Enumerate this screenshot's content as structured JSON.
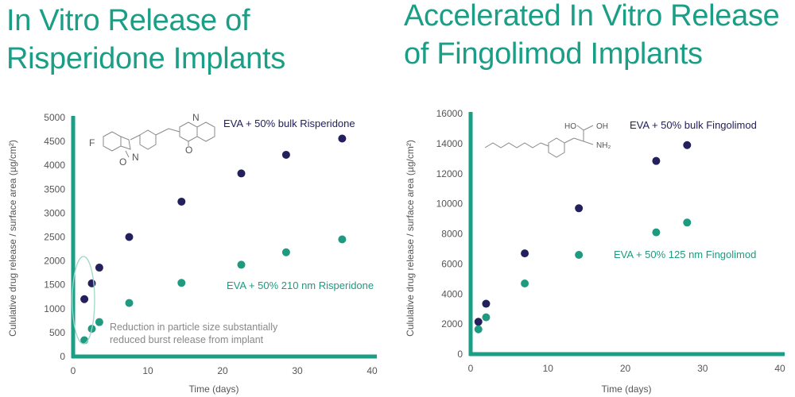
{
  "colors": {
    "accent": "#1a9e86",
    "series_dark": "#23205c",
    "series_teal": "#1e9a80",
    "axis_green": "#1a9e86",
    "tick_text": "#555555",
    "note_text": "#888888"
  },
  "chart_data": [
    {
      "type": "scatter",
      "title": "In Vitro Release of Risperidone Implants",
      "xlabel": "Time (days)",
      "ylabel": "Cululative drug release / surface area (µg/cm²)",
      "xlim": [
        0,
        40
      ],
      "ylim": [
        0,
        5000
      ],
      "x_ticks": [
        "0",
        "10",
        "20",
        "30",
        "40"
      ],
      "y_ticks": [
        "0",
        "500",
        "1000",
        "1500",
        "2000",
        "2500",
        "3000",
        "3500",
        "4000",
        "4500",
        "5000"
      ],
      "grid": false,
      "series": [
        {
          "name": "EVA + 50% bulk Risperidone",
          "color": "#23205c",
          "x": [
            1.5,
            2.5,
            3.5,
            7.5,
            14.5,
            22.5,
            28.5,
            36
          ],
          "y": [
            1200,
            1530,
            1860,
            2500,
            3240,
            3830,
            4220,
            4560
          ]
        },
        {
          "name": "EVA + 50% 210 nm Risperidone",
          "color": "#1e9a80",
          "x": [
            1.5,
            2.5,
            3.5,
            7.5,
            14.5,
            22.5,
            28.5,
            36
          ],
          "y": [
            340,
            580,
            720,
            1120,
            1540,
            1920,
            2180,
            2450
          ]
        }
      ],
      "annotation": [
        "Reduction in particle size substantially",
        "reduced burst release from implant"
      ]
    },
    {
      "type": "scatter",
      "title": "Accelerated In Vitro Release of Fingolimod Implants",
      "xlabel": "Time (days)",
      "ylabel": "Cululative drug release / surface area (µg/cm²)",
      "xlim": [
        0,
        40
      ],
      "ylim": [
        0,
        16000
      ],
      "x_ticks": [
        "0",
        "10",
        "20",
        "30",
        "40"
      ],
      "y_ticks": [
        "0",
        "2000",
        "4000",
        "6000",
        "8000",
        "10000",
        "12000",
        "14000",
        "16000"
      ],
      "grid": false,
      "series": [
        {
          "name": "EVA + 50% bulk Fingolimod",
          "color": "#23205c",
          "x": [
            1,
            2,
            7,
            14,
            24,
            28
          ],
          "y": [
            2150,
            3350,
            6700,
            9700,
            12850,
            13900
          ]
        },
        {
          "name": "EVA + 50% 125 nm Fingolimod",
          "color": "#1e9a80",
          "x": [
            1,
            2,
            7,
            14,
            24,
            28
          ],
          "y": [
            1650,
            2450,
            4700,
            6600,
            8100,
            8750
          ]
        }
      ]
    }
  ]
}
